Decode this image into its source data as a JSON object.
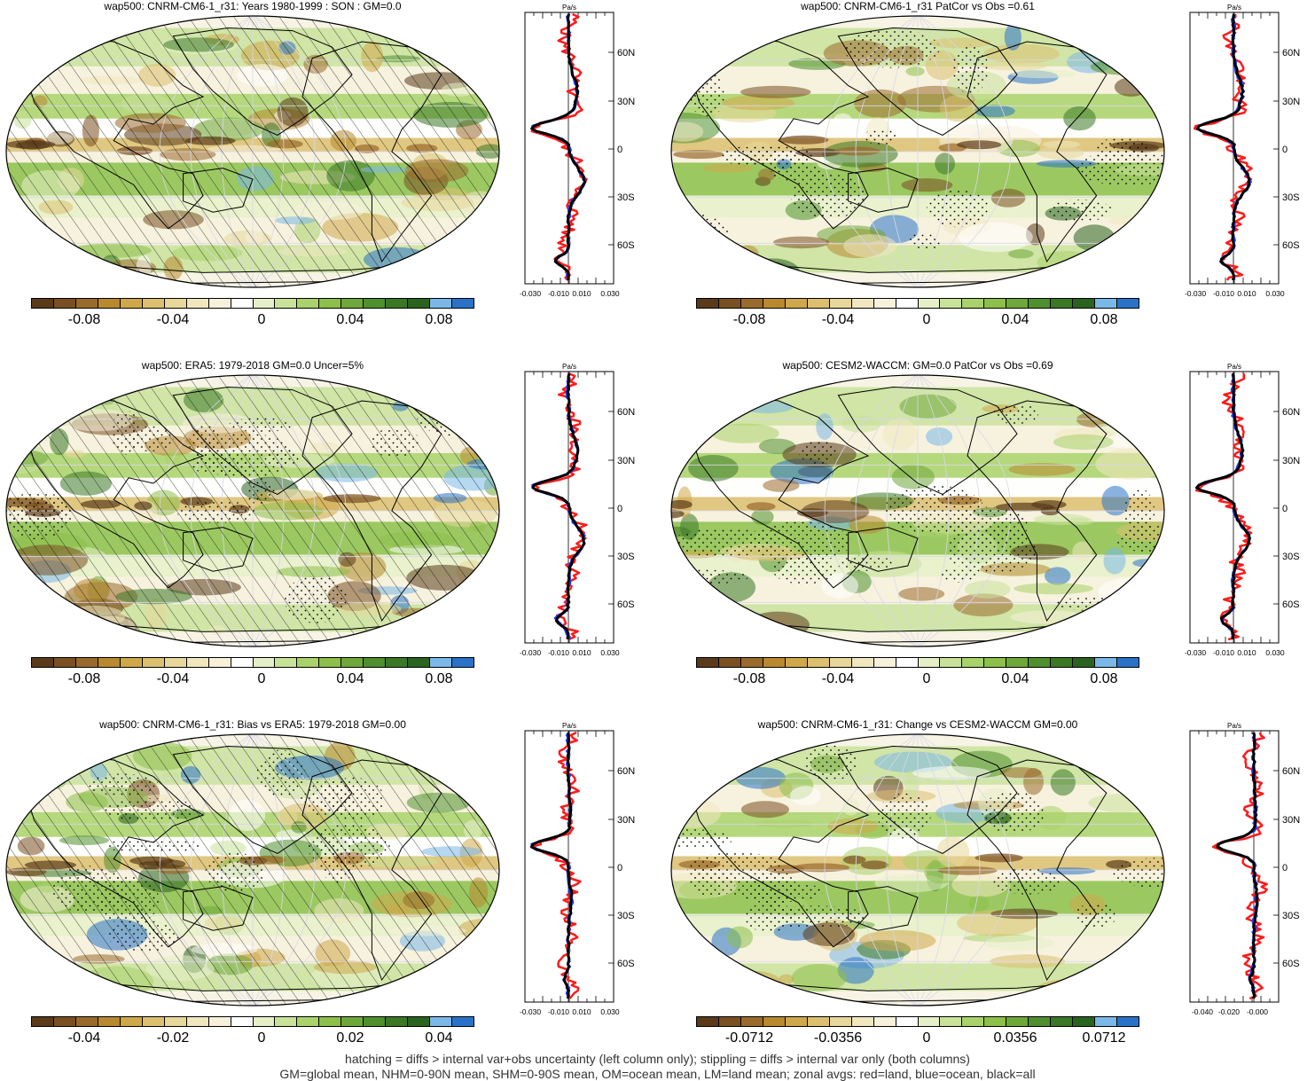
{
  "panels": [
    {
      "title": "wap500: CNRM-CM6-1_r31: Years 1980-1999 : SON : GM=0.0",
      "hatched": true,
      "stippled": false,
      "cbar_labels": [
        "-0.08",
        "-0.04",
        "0",
        "0.04",
        "0.08"
      ],
      "zonal_ticks": [
        "-0.030",
        "-0.010",
        "0.010",
        "0.030"
      ],
      "zonal_units": "Pa/s",
      "lat_labels": [
        "60N",
        "30N",
        "0",
        "30S",
        "60S"
      ]
    },
    {
      "title": "wap500: CNRM-CM6-1_r31 PatCor vs Obs =0.61",
      "hatched": false,
      "stippled": true,
      "cbar_labels": [
        "-0.08",
        "-0.04",
        "0",
        "0.04",
        "0.08"
      ],
      "zonal_ticks": [
        "-0.030",
        "-0.010",
        "0.010",
        "0.030"
      ],
      "zonal_units": "Pa/s",
      "lat_labels": [
        "60N",
        "30N",
        "0",
        "30S",
        "60S"
      ]
    },
    {
      "title": "wap500: ERA5: 1979-2018 GM=0.0 Uncer=5%",
      "hatched": true,
      "stippled": true,
      "cbar_labels": [
        "-0.08",
        "-0.04",
        "0",
        "0.04",
        "0.08"
      ],
      "zonal_ticks": [
        "-0.030",
        "-0.010",
        "0.010",
        "0.030"
      ],
      "zonal_units": "Pa/s",
      "lat_labels": [
        "60N",
        "30N",
        "0",
        "30S",
        "60S"
      ]
    },
    {
      "title": "wap500: CESM2-WACCM: GM=0.0 PatCor vs Obs =0.69",
      "hatched": false,
      "stippled": true,
      "cbar_labels": [
        "-0.08",
        "-0.04",
        "0",
        "0.04",
        "0.08"
      ],
      "zonal_ticks": [
        "-0.030",
        "-0.010",
        "0.010",
        "0.030"
      ],
      "zonal_units": "Pa/s",
      "lat_labels": [
        "60N",
        "30N",
        "0",
        "30S",
        "60S"
      ]
    },
    {
      "title": "wap500: CNRM-CM6-1_r31: Bias vs ERA5: 1979-2018  GM=0.00",
      "hatched": true,
      "stippled": true,
      "cbar_labels": [
        "-0.04",
        "-0.02",
        "0",
        "0.02",
        "0.04"
      ],
      "zonal_ticks": [
        "-0.030",
        "-0.010",
        "0.010",
        "0.030"
      ],
      "zonal_units": "Pa/s",
      "lat_labels": [
        "60N",
        "30N",
        "0",
        "30S",
        "60S"
      ]
    },
    {
      "title": "wap500: CNRM-CM6-1_r31: Change vs CESM2-WACCM GM=0.00",
      "hatched": false,
      "stippled": true,
      "cbar_labels": [
        "-0.0712",
        "-0.0356",
        "0",
        "0.0356",
        "0.0712"
      ],
      "zonal_ticks": [
        "-0.040",
        "-0.020",
        "-0.000"
      ],
      "zonal_units": "Pa/s",
      "lat_labels": [
        "60N",
        "30N",
        "0",
        "30S",
        "60S"
      ]
    }
  ],
  "colors": {
    "palette": [
      "#5a3a1a",
      "#7a4f22",
      "#9a6a2c",
      "#b8892f",
      "#cfa84a",
      "#dcc070",
      "#e8d79a",
      "#f1e7bf",
      "#f7f1dc",
      "#ffffff",
      "#e6f0c8",
      "#c9e29a",
      "#a9d26a",
      "#8cc04a",
      "#6ea83a",
      "#4f8f2e",
      "#3a7826",
      "#2a6220",
      "#7ab8e8",
      "#2a72c8"
    ],
    "land_line": "#ff1a1a",
    "ocean_line": "#1a3cff",
    "all_line": "#000000"
  },
  "footer": {
    "line1": "hatching = diffs > internal var+obs uncertainty (left column only); stippling = diffs > internal var only (both columns)",
    "line2": "GM=global mean, NHM=0-90N mean, SHM=0-90S mean, OM=ocean mean, LM=land mean; zonal avgs: red=land, blue=ocean, black=all"
  }
}
